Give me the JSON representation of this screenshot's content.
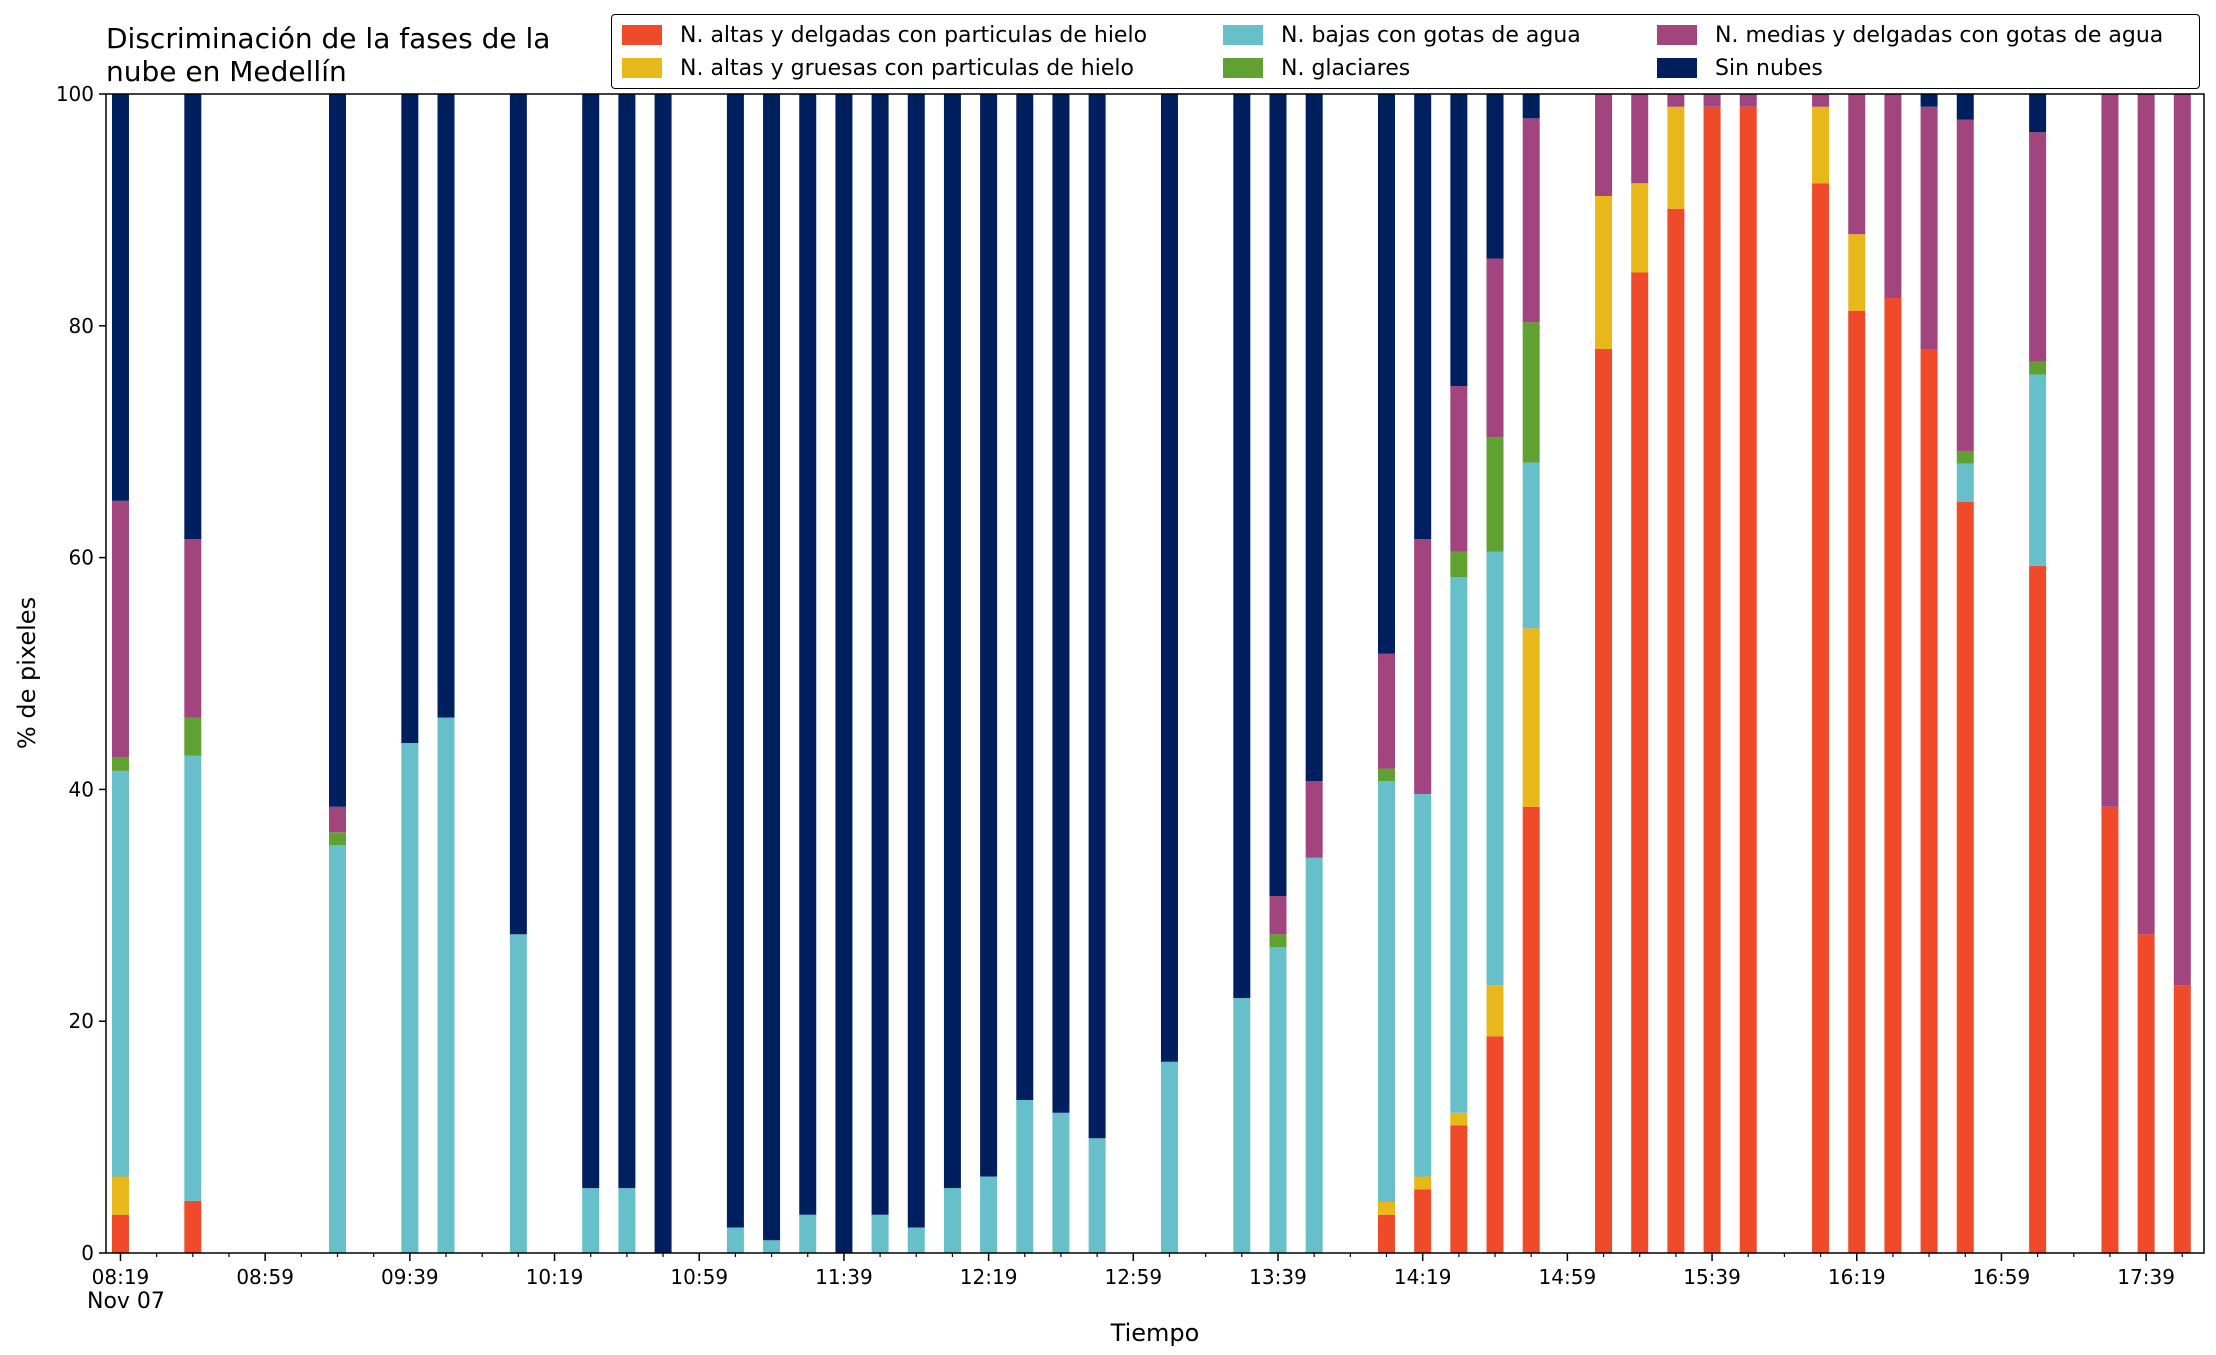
{
  "chart_data": {
    "type": "bar",
    "stacked": true,
    "title": "Discriminación de la fases de la nube en Medellín",
    "title_lines": [
      "Discriminación de la fases de la",
      "nube en Medellín"
    ],
    "xlabel": "Tiempo",
    "ylabel": "% de pixeles",
    "ylim": [
      0,
      100
    ],
    "yticks": [
      0,
      20,
      40,
      60,
      80,
      100
    ],
    "xlim": [
      "08:15",
      "17:55"
    ],
    "x_date_label": "Nov 07",
    "x_major_ticks": [
      "08:19",
      "08:59",
      "09:39",
      "10:19",
      "10:59",
      "11:39",
      "12:19",
      "12:59",
      "13:39",
      "14:19",
      "14:59",
      "15:39",
      "16:19",
      "16:59",
      "17:39"
    ],
    "x_minor_step_minutes": 10,
    "grid": false,
    "legend_position": "top",
    "series": [
      {
        "name": "N. altas y delgadas con particulas de hielo",
        "color": "#EF4A2A"
      },
      {
        "name": "N. altas y gruesas con particulas de hielo",
        "color": "#E8B719"
      },
      {
        "name": "N. bajas con gotas de agua",
        "color": "#67BFC9"
      },
      {
        "name": "N. glaciares",
        "color": "#60A131"
      },
      {
        "name": "N. medias y delgadas con gotas de agua",
        "color": "#A2447D"
      },
      {
        "name": "Sin nubes",
        "color": "#001F5E"
      }
    ],
    "bars": [
      {
        "time": "08:19",
        "values": [
          3.3,
          3.3,
          35.0,
          1.2,
          22.1,
          35.1
        ]
      },
      {
        "time": "08:39",
        "values": [
          4.5,
          0,
          38.4,
          3.3,
          15.4,
          38.4
        ]
      },
      {
        "time": "09:19",
        "values": [
          0,
          0,
          35.2,
          1.1,
          2.2,
          61.5
        ]
      },
      {
        "time": "09:39",
        "values": [
          0,
          0,
          44.0,
          0,
          0,
          56.0
        ]
      },
      {
        "time": "09:49",
        "values": [
          0,
          0,
          46.2,
          0,
          0,
          53.8
        ]
      },
      {
        "time": "10:09",
        "values": [
          0,
          0,
          27.5,
          0,
          0,
          72.5
        ]
      },
      {
        "time": "10:29",
        "values": [
          0,
          0,
          5.6,
          0,
          0,
          94.4
        ]
      },
      {
        "time": "10:39",
        "values": [
          0,
          0,
          5.6,
          0,
          0,
          94.4
        ]
      },
      {
        "time": "10:49",
        "values": [
          0,
          0,
          0,
          0,
          0,
          100
        ]
      },
      {
        "time": "11:09",
        "values": [
          0,
          0,
          2.2,
          0,
          0,
          97.8
        ]
      },
      {
        "time": "11:19",
        "values": [
          0,
          0,
          1.1,
          0,
          0,
          98.9
        ]
      },
      {
        "time": "11:29",
        "values": [
          0,
          0,
          3.3,
          0,
          0,
          96.7
        ]
      },
      {
        "time": "11:39",
        "values": [
          0,
          0,
          0,
          0,
          0,
          100
        ]
      },
      {
        "time": "11:49",
        "values": [
          0,
          0,
          3.3,
          0,
          0,
          96.7
        ]
      },
      {
        "time": "11:59",
        "values": [
          0,
          0,
          2.2,
          0,
          0,
          97.8
        ]
      },
      {
        "time": "12:09",
        "values": [
          0,
          0,
          5.6,
          0,
          0,
          94.4
        ]
      },
      {
        "time": "12:19",
        "values": [
          0,
          0,
          6.6,
          0,
          0,
          93.4
        ]
      },
      {
        "time": "12:29",
        "values": [
          0,
          0,
          13.2,
          0,
          0,
          86.8
        ]
      },
      {
        "time": "12:39",
        "values": [
          0,
          0,
          12.1,
          0,
          0,
          87.9
        ]
      },
      {
        "time": "12:49",
        "values": [
          0,
          0,
          9.9,
          0,
          0,
          90.1
        ]
      },
      {
        "time": "13:09",
        "values": [
          0,
          0,
          16.5,
          0,
          0,
          83.5
        ]
      },
      {
        "time": "13:29",
        "values": [
          0,
          0,
          22.0,
          0,
          0,
          78.0
        ]
      },
      {
        "time": "13:39",
        "values": [
          0,
          0,
          26.4,
          1.1,
          3.3,
          69.2
        ]
      },
      {
        "time": "13:49",
        "values": [
          0,
          0,
          34.1,
          0,
          6.6,
          59.3
        ]
      },
      {
        "time": "14:09",
        "values": [
          3.3,
          1.1,
          36.3,
          1.1,
          9.9,
          48.3
        ]
      },
      {
        "time": "14:19",
        "values": [
          5.5,
          1.1,
          33.0,
          0,
          22.0,
          38.4
        ]
      },
      {
        "time": "14:29",
        "values": [
          11.0,
          1.1,
          46.2,
          2.2,
          14.3,
          25.2
        ]
      },
      {
        "time": "14:39",
        "values": [
          18.7,
          4.4,
          37.4,
          9.9,
          15.4,
          14.2
        ]
      },
      {
        "time": "14:49",
        "values": [
          38.5,
          15.4,
          14.3,
          12.1,
          17.6,
          2.1
        ]
      },
      {
        "time": "15:09",
        "values": [
          78.0,
          13.2,
          0,
          0,
          8.8,
          0
        ]
      },
      {
        "time": "15:19",
        "values": [
          84.6,
          7.7,
          0,
          0,
          7.7,
          0
        ]
      },
      {
        "time": "15:29",
        "values": [
          90.1,
          8.8,
          0,
          0,
          1.1,
          0
        ]
      },
      {
        "time": "15:39",
        "values": [
          98.9,
          0,
          0,
          0,
          1.1,
          0
        ]
      },
      {
        "time": "15:49",
        "values": [
          98.9,
          0,
          0,
          0,
          1.1,
          0
        ]
      },
      {
        "time": "16:09",
        "values": [
          92.3,
          6.6,
          0,
          0,
          1.1,
          0
        ]
      },
      {
        "time": "16:19",
        "values": [
          81.3,
          6.6,
          0,
          0,
          12.1,
          0
        ]
      },
      {
        "time": "16:29",
        "values": [
          82.4,
          0,
          0,
          0,
          17.6,
          0
        ]
      },
      {
        "time": "16:39",
        "values": [
          78.0,
          0,
          0,
          0,
          20.9,
          1.1
        ]
      },
      {
        "time": "16:49",
        "values": [
          64.8,
          0,
          3.3,
          1.1,
          28.6,
          2.2
        ]
      },
      {
        "time": "17:09",
        "values": [
          59.3,
          0,
          16.5,
          1.1,
          19.8,
          3.3
        ]
      },
      {
        "time": "17:29",
        "values": [
          38.5,
          0,
          0,
          0,
          61.5,
          0
        ]
      },
      {
        "time": "17:39",
        "values": [
          27.5,
          0,
          0,
          0,
          72.5,
          0
        ]
      },
      {
        "time": "17:49",
        "values": [
          23.1,
          0,
          0,
          0,
          76.9,
          0
        ]
      }
    ]
  }
}
